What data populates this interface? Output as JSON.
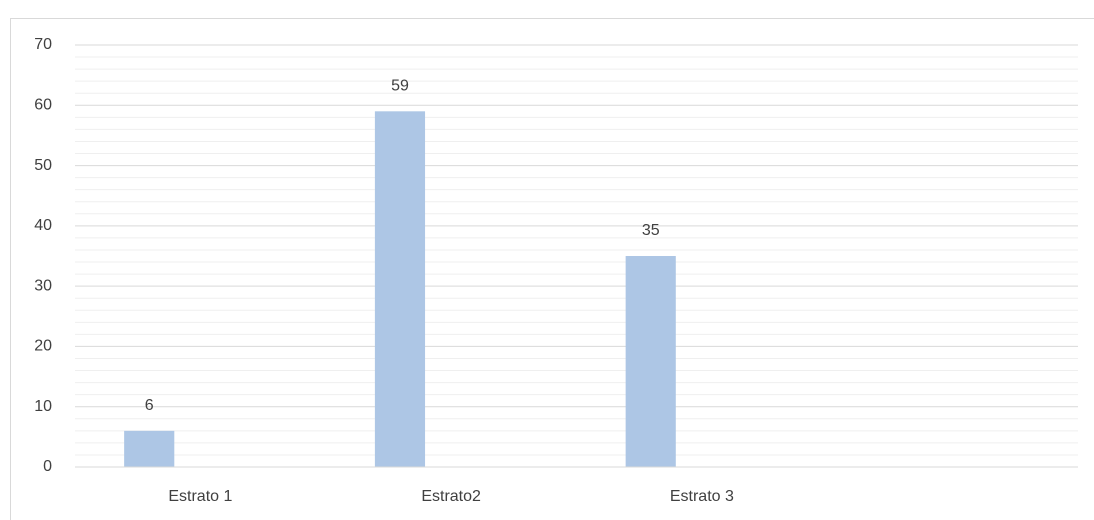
{
  "chart_data": {
    "type": "bar",
    "categories": [
      "Estrato 1",
      "Estrato2",
      "Estrato 3",
      null
    ],
    "values": [
      6,
      59,
      35,
      null
    ],
    "color": "#adc6e5",
    "ylim": [
      0,
      70
    ],
    "yticks": [
      0,
      10,
      20,
      30,
      40,
      50,
      60,
      70
    ],
    "grid": true
  }
}
